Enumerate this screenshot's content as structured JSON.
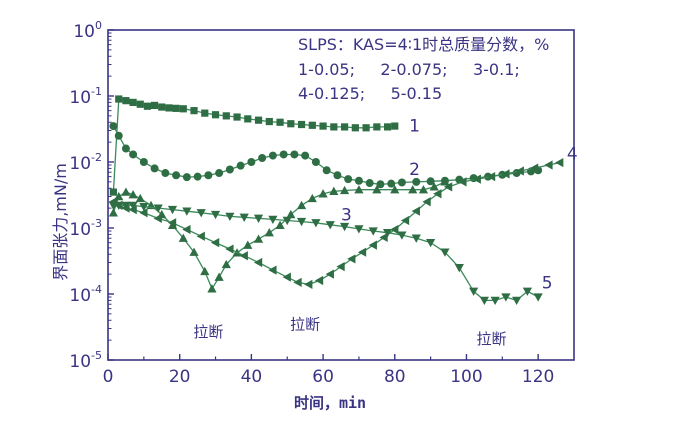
{
  "chart_data": {
    "type": "line",
    "xlabel": "时间，min",
    "ylabel": "界面张力,mN/m",
    "x_ticks": [
      0,
      20,
      40,
      60,
      80,
      100,
      120
    ],
    "y_ticks": [
      {
        "value": 1,
        "base": "10",
        "exp": "0"
      },
      {
        "value": 0.1,
        "base": "10",
        "exp": "-1"
      },
      {
        "value": 0.01,
        "base": "10",
        "exp": "-2"
      },
      {
        "value": 0.001,
        "base": "10",
        "exp": "-3"
      },
      {
        "value": 0.0001,
        "base": "10",
        "exp": "-4"
      },
      {
        "value": 1e-05,
        "base": "10",
        "exp": "-5"
      }
    ],
    "xlim": [
      0,
      130
    ],
    "ylim": [
      1e-05,
      1
    ],
    "y_scale": "log",
    "grid": false,
    "legend": {
      "position": "top-right",
      "lines": [
        "SLPS：KAS=4∶1时总质量分数，%",
        "1-0.05;     2-0.075;     3-0.1;",
        "4-0.125;     5-0.15"
      ]
    },
    "series": [
      {
        "name": "1",
        "marker": "square",
        "label_x": 84,
        "label_y": 0.036,
        "points": [
          [
            1.5,
            0.0035
          ],
          [
            3,
            0.09
          ],
          [
            5,
            0.085
          ],
          [
            7,
            0.08
          ],
          [
            9,
            0.075
          ],
          [
            11,
            0.07
          ],
          [
            13,
            0.072
          ],
          [
            15,
            0.068
          ],
          [
            17,
            0.066
          ],
          [
            19,
            0.065
          ],
          [
            21,
            0.064
          ],
          [
            24,
            0.06
          ],
          [
            27,
            0.055
          ],
          [
            30,
            0.052
          ],
          [
            33,
            0.05
          ],
          [
            36,
            0.048
          ],
          [
            39,
            0.045
          ],
          [
            42,
            0.043
          ],
          [
            45,
            0.041
          ],
          [
            48,
            0.04
          ],
          [
            51,
            0.038
          ],
          [
            54,
            0.037
          ],
          [
            57,
            0.036
          ],
          [
            60,
            0.035
          ],
          [
            63,
            0.034
          ],
          [
            66,
            0.034
          ],
          [
            69,
            0.033
          ],
          [
            72,
            0.033
          ],
          [
            75,
            0.034
          ],
          [
            78,
            0.034
          ],
          [
            80,
            0.035
          ]
        ]
      },
      {
        "name": "2",
        "marker": "circle",
        "label_x": 84,
        "label_y": 0.0078,
        "points": [
          [
            1.5,
            0.035
          ],
          [
            3,
            0.025
          ],
          [
            5,
            0.016
          ],
          [
            7,
            0.013
          ],
          [
            10,
            0.01
          ],
          [
            13,
            0.008
          ],
          [
            16,
            0.0068
          ],
          [
            19,
            0.0063
          ],
          [
            22,
            0.0059
          ],
          [
            25,
            0.006
          ],
          [
            28,
            0.0063
          ],
          [
            31,
            0.0068
          ],
          [
            34,
            0.0077
          ],
          [
            37,
            0.0088
          ],
          [
            40,
            0.01
          ],
          [
            43,
            0.0115
          ],
          [
            46,
            0.0125
          ],
          [
            49,
            0.013
          ],
          [
            52,
            0.013
          ],
          [
            55,
            0.0125
          ],
          [
            58,
            0.01
          ],
          [
            61,
            0.0075
          ],
          [
            64,
            0.0063
          ],
          [
            67,
            0.0055
          ],
          [
            70,
            0.0052
          ],
          [
            73,
            0.0048
          ],
          [
            76,
            0.0046
          ],
          [
            79,
            0.0047
          ],
          [
            82,
            0.0049
          ],
          [
            86,
            0.005
          ],
          [
            90,
            0.0051
          ],
          [
            94,
            0.0052
          ],
          [
            98,
            0.0054
          ],
          [
            102,
            0.0057
          ],
          [
            106,
            0.006
          ],
          [
            110,
            0.0064
          ],
          [
            114,
            0.0068
          ],
          [
            118,
            0.0072
          ],
          [
            120,
            0.0075
          ]
        ]
      },
      {
        "name": "3",
        "marker": "triangle-up",
        "label_x": 65,
        "label_y": 0.0016,
        "points": [
          [
            1.5,
            0.0017
          ],
          [
            3,
            0.003
          ],
          [
            5,
            0.0035
          ],
          [
            7,
            0.0032
          ],
          [
            9,
            0.0028
          ],
          [
            12,
            0.0022
          ],
          [
            15,
            0.0016
          ],
          [
            18,
            0.0011
          ],
          [
            21,
            0.0007
          ],
          [
            24,
            0.00043
          ],
          [
            27,
            0.00022
          ],
          [
            29,
            0.00012
          ],
          [
            31,
            0.00018
          ],
          [
            33,
            0.00028
          ],
          [
            36,
            0.00042
          ],
          [
            39,
            0.00055
          ],
          [
            42,
            0.00068
          ],
          [
            45,
            0.00085
          ],
          [
            48,
            0.0011
          ],
          [
            51,
            0.0016
          ],
          [
            54,
            0.0022
          ],
          [
            57,
            0.0028
          ],
          [
            60,
            0.0033
          ],
          [
            63,
            0.0036
          ],
          [
            66,
            0.0037
          ],
          [
            70,
            0.0038
          ],
          [
            75,
            0.0038
          ],
          [
            80,
            0.0038
          ],
          [
            85,
            0.0038
          ],
          [
            88,
            0.0038
          ],
          [
            91,
            0.0042
          ],
          [
            94,
            0.005
          ]
        ]
      },
      {
        "name": "4",
        "marker": "triangle-left",
        "label_x": 128,
        "label_y": 0.0135,
        "points": [
          [
            1.5,
            0.0025
          ],
          [
            3,
            0.0022
          ],
          [
            5,
            0.002
          ],
          [
            7,
            0.0019
          ],
          [
            10,
            0.0017
          ],
          [
            14,
            0.0014
          ],
          [
            18,
            0.0012
          ],
          [
            22,
            0.00095
          ],
          [
            26,
            0.00075
          ],
          [
            30,
            0.0006
          ],
          [
            34,
            0.00048
          ],
          [
            38,
            0.00038
          ],
          [
            42,
            0.0003
          ],
          [
            46,
            0.00023
          ],
          [
            50,
            0.00018
          ],
          [
            53,
            0.00015
          ],
          [
            56,
            0.00014
          ],
          [
            59,
            0.00016
          ],
          [
            62,
            0.0002
          ],
          [
            65,
            0.00026
          ],
          [
            68,
            0.00034
          ],
          [
            71,
            0.00043
          ],
          [
            74,
            0.00055
          ],
          [
            77,
            0.00072
          ],
          [
            80,
            0.00095
          ],
          [
            83,
            0.0013
          ],
          [
            86,
            0.0018
          ],
          [
            89,
            0.0025
          ],
          [
            92,
            0.0033
          ],
          [
            95,
            0.0042
          ],
          [
            99,
            0.005
          ],
          [
            103,
            0.0055
          ],
          [
            107,
            0.006
          ],
          [
            111,
            0.0066
          ],
          [
            115,
            0.0073
          ],
          [
            119,
            0.0081
          ],
          [
            123,
            0.009
          ],
          [
            126,
            0.0098
          ]
        ]
      },
      {
        "name": "5",
        "marker": "triangle-down",
        "label_x": 121,
        "label_y": 0.00015,
        "points": [
          [
            1.5,
            0.0022
          ],
          [
            3,
            0.0022
          ],
          [
            5,
            0.0022
          ],
          [
            7,
            0.0022
          ],
          [
            10,
            0.0021
          ],
          [
            14,
            0.002
          ],
          [
            18,
            0.0019
          ],
          [
            22,
            0.0018
          ],
          [
            26,
            0.0017
          ],
          [
            30,
            0.0016
          ],
          [
            34,
            0.0015
          ],
          [
            38,
            0.00145
          ],
          [
            42,
            0.0014
          ],
          [
            46,
            0.00135
          ],
          [
            50,
            0.0013
          ],
          [
            54,
            0.00125
          ],
          [
            58,
            0.0012
          ],
          [
            62,
            0.00112
          ],
          [
            66,
            0.00105
          ],
          [
            70,
            0.00097
          ],
          [
            74,
            0.0009
          ],
          [
            78,
            0.00085
          ],
          [
            82,
            0.00078
          ],
          [
            86,
            0.0007
          ],
          [
            90,
            0.0006
          ],
          [
            94,
            0.00043
          ],
          [
            98,
            0.00025
          ],
          [
            102,
            0.00011
          ],
          [
            105,
            8e-05
          ],
          [
            108,
            8e-05
          ],
          [
            111,
            9e-05
          ],
          [
            114,
            8e-05
          ],
          [
            117,
            0.00011
          ],
          [
            120,
            9e-05
          ]
        ]
      }
    ],
    "annotations": [
      {
        "text": "拉断",
        "x": 28,
        "y": 2.25e-05
      },
      {
        "text": "拉断",
        "x": 55,
        "y": 2.9e-05
      },
      {
        "text": "拉断",
        "x": 107,
        "y": 1.75e-05
      }
    ],
    "colors": {
      "line": "#3b8a5a",
      "marker": "#2f6e44",
      "axis": "#3a3483",
      "text": "#3a3483"
    }
  }
}
